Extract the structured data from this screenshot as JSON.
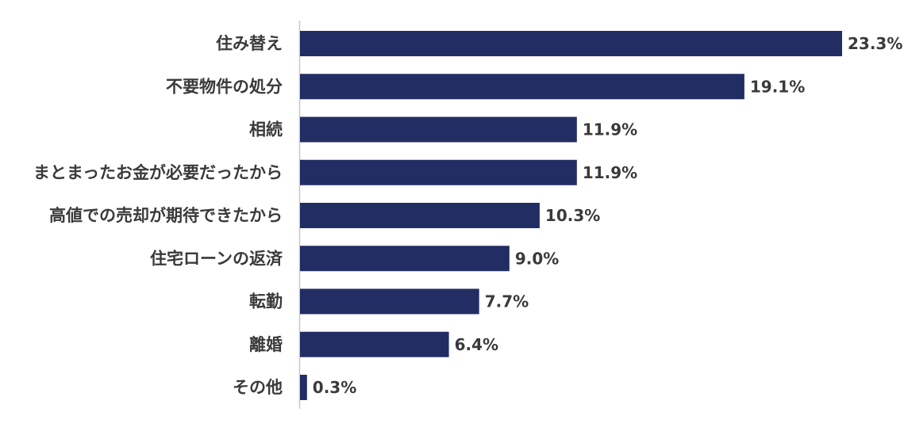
{
  "chart_data": {
    "type": "bar",
    "orientation": "horizontal",
    "categories": [
      "住み替え",
      "不要物件の処分",
      "相続",
      "まとまったお金が必要だったから",
      "高値での売却が期待できたから",
      "住宅ローンの返済",
      "転勤",
      "離婚",
      "その他"
    ],
    "values": [
      23.3,
      19.1,
      11.9,
      11.9,
      10.3,
      9.0,
      7.7,
      6.4,
      0.3
    ],
    "value_labels": [
      "23.3%",
      "19.1%",
      "11.9%",
      "11.9%",
      "10.3%",
      "9.0%",
      "7.7%",
      "6.4%",
      "0.3%"
    ],
    "bar_color": "#222d63",
    "xlim": [
      0,
      23.3
    ],
    "grid": false,
    "legend": "none"
  }
}
